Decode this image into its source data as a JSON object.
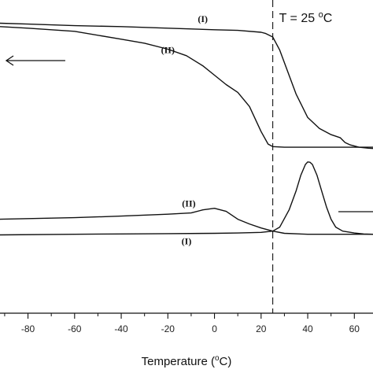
{
  "chart_data": {
    "type": "line",
    "xlabel": "Temperature (oC)",
    "xlabel_main": "Temperature (",
    "xlabel_sup": "o",
    "xlabel_tail": "C)",
    "xlim": [
      -92,
      68
    ],
    "xticks": [
      -80,
      -60,
      -40,
      -20,
      0,
      20,
      40,
      60
    ],
    "ylim": [
      0,
      1
    ],
    "grid": false,
    "reference_line": {
      "x": 25,
      "label": "T = 25 oC",
      "label_main": "T = 25 ",
      "label_sup": "o",
      "label_tail": "C",
      "style": "dashed"
    },
    "annotations": [
      {
        "text": "(I)",
        "near": "upper curve I, around 0 °C"
      },
      {
        "text": "(II)",
        "near": "upper curve II, around -15 °C"
      },
      {
        "text": "(II)",
        "near": "lower curve II, around -10 °C"
      },
      {
        "text": "(I)",
        "near": "lower curve I, around 0 °C"
      }
    ],
    "arrows": [
      {
        "direction": "left",
        "position": "upper-left"
      },
      {
        "direction": "right",
        "position": "lower-right",
        "partially_visible": true
      }
    ],
    "series": [
      {
        "label": "(I)",
        "panel": "upper",
        "x": [
          -92,
          -80,
          -60,
          -40,
          -20,
          0,
          10,
          20,
          22,
          25,
          28,
          30,
          35,
          40,
          45,
          50,
          54,
          56,
          58,
          62,
          66,
          68
        ],
        "y": [
          0.926,
          0.923,
          0.918,
          0.915,
          0.91,
          0.905,
          0.903,
          0.897,
          0.893,
          0.882,
          0.84,
          0.8,
          0.7,
          0.625,
          0.59,
          0.57,
          0.56,
          0.545,
          0.538,
          0.53,
          0.527,
          0.526
        ]
      },
      {
        "label": "(II)",
        "panel": "upper",
        "x": [
          -92,
          -80,
          -60,
          -40,
          -30,
          -20,
          -12,
          -5,
          0,
          5,
          10,
          15,
          20,
          23,
          25,
          30,
          40,
          50,
          60,
          68
        ],
        "y": [
          0.915,
          0.91,
          0.9,
          0.875,
          0.862,
          0.843,
          0.822,
          0.79,
          0.76,
          0.73,
          0.705,
          0.66,
          0.58,
          0.54,
          0.532,
          0.53,
          0.53,
          0.53,
          0.53,
          0.53
        ]
      },
      {
        "label": "(II)",
        "panel": "lower",
        "x": [
          -92,
          -60,
          -40,
          -20,
          -10,
          -5,
          0,
          5,
          10,
          15,
          20,
          25,
          30,
          40,
          50,
          60,
          68
        ],
        "y": [
          0.3,
          0.305,
          0.31,
          0.316,
          0.32,
          0.33,
          0.335,
          0.325,
          0.3,
          0.285,
          0.272,
          0.262,
          0.255,
          0.252,
          0.252,
          0.252,
          0.252
        ]
      },
      {
        "label": "(I)",
        "panel": "lower",
        "x": [
          -92,
          -60,
          -40,
          -20,
          0,
          10,
          20,
          25,
          28,
          32,
          35,
          37,
          39,
          40,
          41,
          42,
          44,
          46,
          48,
          50,
          52,
          55,
          60,
          64,
          68
        ],
        "y": [
          0.25,
          0.252,
          0.253,
          0.254,
          0.255,
          0.256,
          0.258,
          0.262,
          0.275,
          0.33,
          0.39,
          0.44,
          0.475,
          0.483,
          0.482,
          0.475,
          0.44,
          0.39,
          0.34,
          0.3,
          0.275,
          0.262,
          0.256,
          0.253,
          0.252
        ]
      }
    ]
  }
}
